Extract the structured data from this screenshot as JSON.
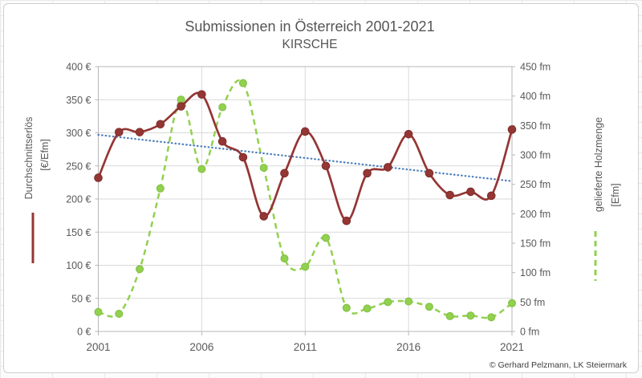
{
  "header": {
    "title": "Submissionen in Österreich 2001-2021",
    "subtitle": "KIRSCHE"
  },
  "footer": {
    "copyright": "© Gerhard Pelzmann, LK Steiermark"
  },
  "left_axis": {
    "title": "Durchschnittserlös",
    "unit": "[€/Efm]",
    "ticks": [
      {
        "value": 0,
        "label": "0 €"
      },
      {
        "value": 50,
        "label": "50 €"
      },
      {
        "value": 100,
        "label": "100 €"
      },
      {
        "value": 150,
        "label": "150 €"
      },
      {
        "value": 200,
        "label": "200 €"
      },
      {
        "value": 250,
        "label": "250 €"
      },
      {
        "value": 300,
        "label": "300 €"
      },
      {
        "value": 350,
        "label": "350 €"
      },
      {
        "value": 400,
        "label": "400 €"
      }
    ]
  },
  "right_axis": {
    "title": "gelieferte Holzmenge",
    "unit": "[Efm]",
    "ticks": [
      {
        "value": 0,
        "label": "0 fm"
      },
      {
        "value": 50,
        "label": "50 fm"
      },
      {
        "value": 100,
        "label": "100 fm"
      },
      {
        "value": 150,
        "label": "150 fm"
      },
      {
        "value": 200,
        "label": "200 fm"
      },
      {
        "value": 250,
        "label": "250 fm"
      },
      {
        "value": 300,
        "label": "300 fm"
      },
      {
        "value": 350,
        "label": "350 fm"
      },
      {
        "value": 400,
        "label": "400 fm"
      },
      {
        "value": 450,
        "label": "450 fm"
      }
    ]
  },
  "colors": {
    "revenue": "#943634",
    "revenue_marker_stroke": "#7e2d2b",
    "volume": "#92d050",
    "volume_marker_stroke": "#7fbf3f",
    "trend": "#4a7ebb",
    "gridline": "#d9d9d9",
    "axis_line": "#b7b7b7",
    "tick_text": "#595959"
  },
  "chart_data": {
    "type": "line",
    "title": "Submissionen in Österreich 2001-2021",
    "subtitle": "KIRSCHE",
    "x": [
      2001,
      2002,
      2003,
      2004,
      2005,
      2006,
      2007,
      2008,
      2009,
      2010,
      2011,
      2012,
      2013,
      2014,
      2015,
      2016,
      2017,
      2018,
      2019,
      2020,
      2021
    ],
    "x_ticks": [
      {
        "index": 0,
        "label": "2001"
      },
      {
        "index": 5,
        "label": "2006"
      },
      {
        "index": 10,
        "label": "2011"
      },
      {
        "index": 15,
        "label": "2016"
      },
      {
        "index": 20,
        "label": "2021"
      }
    ],
    "left_ylim": [
      0,
      400
    ],
    "right_ylim": [
      0,
      450
    ],
    "grid": true,
    "legend_position": "axis-titles",
    "series": [
      {
        "name": "Durchschnittserlös [€/Efm]",
        "axis": "left",
        "line": "solid",
        "smooth": true,
        "values": [
          232,
          301,
          301,
          313,
          340,
          358,
          287,
          263,
          174,
          239,
          302,
          250,
          167,
          239,
          248,
          298,
          239,
          206,
          211,
          205,
          305
        ]
      },
      {
        "name": "gelieferte Holzmenge [Efm]",
        "axis": "right",
        "line": "dashed",
        "smooth": true,
        "values": [
          33,
          30,
          106,
          243,
          394,
          276,
          381,
          422,
          278,
          124,
          110,
          159,
          40,
          39,
          50,
          51,
          42,
          26,
          27,
          24,
          48
        ]
      },
      {
        "name": "Linear (Durchschnittserlös)",
        "axis": "left",
        "line": "dotted",
        "trend_endpoints": [
          297,
          227
        ]
      }
    ]
  }
}
